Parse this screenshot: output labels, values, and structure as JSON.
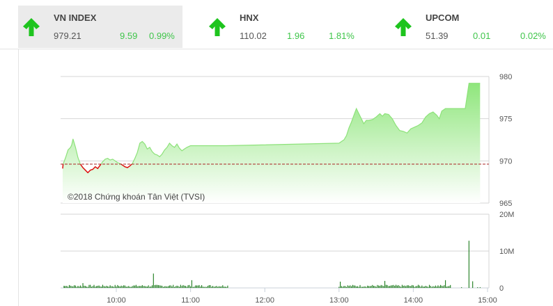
{
  "indices": [
    {
      "name": "VN INDEX",
      "value": "979.21",
      "change": "9.59",
      "percent": "0.99%",
      "direction": "up",
      "active": true
    },
    {
      "name": "HNX",
      "value": "110.02",
      "change": "1.96",
      "percent": "1.81%",
      "direction": "up",
      "active": false
    },
    {
      "name": "UPCOM",
      "value": "51.39",
      "change": "0.01",
      "percent": "0.02%",
      "direction": "up",
      "active": false
    }
  ],
  "colors": {
    "up": "#1ec41e",
    "down": "#dd1111",
    "area_line": "#8de27a",
    "area_fill_top": "#8fe67c",
    "area_fill_bottom": "#ffffff",
    "reference": "#aa2222",
    "volume_bar": "#1a7a1a",
    "grid": "#d6d6d6"
  },
  "copyright": "©2018 Chứng khoán Tân Việt (TVSI)",
  "chart_data": [
    {
      "type": "area",
      "title": "VN INDEX intraday",
      "ylim": [
        965,
        980
      ],
      "yticks": [
        965,
        970,
        975,
        980
      ],
      "ylabels": [
        "965",
        "970",
        "975",
        "980"
      ],
      "reference": 969.62,
      "xlabels": [
        "10:00",
        "11:00",
        "12:00",
        "13:00",
        "14:00",
        "15:00"
      ],
      "x_range": [
        "09:15",
        "15:00"
      ],
      "points": [
        [
          "09:15",
          969.1
        ],
        [
          "09:17",
          969.6
        ],
        [
          "09:19",
          970.4
        ],
        [
          "09:21",
          971.3
        ],
        [
          "09:23",
          971.6
        ],
        [
          "09:24",
          971.9
        ],
        [
          "09:25",
          972.6
        ],
        [
          "09:27",
          971.6
        ],
        [
          "09:29",
          970.4
        ],
        [
          "09:31",
          969.6
        ],
        [
          "09:33",
          969.2
        ],
        [
          "09:35",
          968.9
        ],
        [
          "09:37",
          968.6
        ],
        [
          "09:39",
          968.9
        ],
        [
          "09:41",
          969.0
        ],
        [
          "09:43",
          969.3
        ],
        [
          "09:45",
          969.1
        ],
        [
          "09:47",
          969.5
        ],
        [
          "09:49",
          969.9
        ],
        [
          "09:51",
          970.2
        ],
        [
          "09:53",
          970.3
        ],
        [
          "09:55",
          970.1
        ],
        [
          "09:57",
          970.2
        ],
        [
          "09:59",
          970.0
        ],
        [
          "10:01",
          969.8
        ],
        [
          "10:03",
          969.7
        ],
        [
          "10:05",
          969.5
        ],
        [
          "10:07",
          969.3
        ],
        [
          "10:09",
          969.2
        ],
        [
          "10:11",
          969.4
        ],
        [
          "10:13",
          969.7
        ],
        [
          "10:15",
          970.3
        ],
        [
          "10:17",
          971.0
        ],
        [
          "10:19",
          972.1
        ],
        [
          "10:21",
          972.3
        ],
        [
          "10:23",
          972.0
        ],
        [
          "10:25",
          971.4
        ],
        [
          "10:27",
          971.6
        ],
        [
          "10:29",
          971.1
        ],
        [
          "10:31",
          970.8
        ],
        [
          "10:33",
          970.7
        ],
        [
          "10:35",
          970.5
        ],
        [
          "10:37",
          970.8
        ],
        [
          "10:39",
          971.3
        ],
        [
          "10:41",
          971.6
        ],
        [
          "10:43",
          972.1
        ],
        [
          "10:45",
          971.8
        ],
        [
          "10:47",
          971.6
        ],
        [
          "10:49",
          972.0
        ],
        [
          "10:51",
          971.5
        ],
        [
          "10:53",
          971.2
        ],
        [
          "10:55",
          971.4
        ],
        [
          "10:57",
          971.6
        ],
        [
          "11:00",
          971.8
        ],
        [
          "11:29",
          971.8
        ],
        [
          "13:00",
          972.1
        ],
        [
          "13:02",
          972.3
        ],
        [
          "13:04",
          972.5
        ],
        [
          "13:06",
          973.0
        ],
        [
          "13:08",
          973.9
        ],
        [
          "13:10",
          974.6
        ],
        [
          "13:12",
          975.4
        ],
        [
          "13:14",
          976.2
        ],
        [
          "13:16",
          975.6
        ],
        [
          "13:18",
          975.0
        ],
        [
          "13:20",
          974.4
        ],
        [
          "13:22",
          974.8
        ],
        [
          "13:24",
          974.8
        ],
        [
          "13:27",
          974.9
        ],
        [
          "13:30",
          975.2
        ],
        [
          "13:33",
          975.6
        ],
        [
          "13:35",
          975.3
        ],
        [
          "13:37",
          975.6
        ],
        [
          "13:40",
          975.5
        ],
        [
          "13:43",
          975.0
        ],
        [
          "13:46",
          974.2
        ],
        [
          "13:49",
          973.6
        ],
        [
          "13:52",
          973.5
        ],
        [
          "13:55",
          973.3
        ],
        [
          "13:58",
          973.8
        ],
        [
          "14:01",
          974.0
        ],
        [
          "14:04",
          974.2
        ],
        [
          "14:07",
          974.5
        ],
        [
          "14:10",
          975.2
        ],
        [
          "14:13",
          975.6
        ],
        [
          "14:16",
          975.8
        ],
        [
          "14:19",
          975.4
        ],
        [
          "14:21",
          975.0
        ],
        [
          "14:23",
          975.9
        ],
        [
          "14:26",
          976.2
        ],
        [
          "14:29",
          976.2
        ],
        [
          "14:42",
          976.2
        ],
        [
          "14:45",
          979.2
        ],
        [
          "14:54",
          979.2
        ]
      ]
    },
    {
      "type": "bar",
      "title": "Volume",
      "ylim": [
        0,
        20000000
      ],
      "yticks": [
        0,
        10000000,
        20000000
      ],
      "ylabels": [
        "0",
        "10M",
        "20M"
      ],
      "xlabels": [
        "10:00",
        "11:00",
        "12:00",
        "13:00",
        "14:00",
        "15:00"
      ],
      "notable_bars": [
        {
          "time": "09:33",
          "value": 1300000
        },
        {
          "time": "10:30",
          "value": 3900000
        },
        {
          "time": "11:01",
          "value": 2100000
        },
        {
          "time": "13:01",
          "value": 1700000
        },
        {
          "time": "13:37",
          "value": 1900000
        },
        {
          "time": "14:26",
          "value": 2100000
        },
        {
          "time": "14:45",
          "value": 12800000
        },
        {
          "time": "14:48",
          "value": 1800000
        }
      ],
      "typical_bar_value": 500000
    }
  ]
}
